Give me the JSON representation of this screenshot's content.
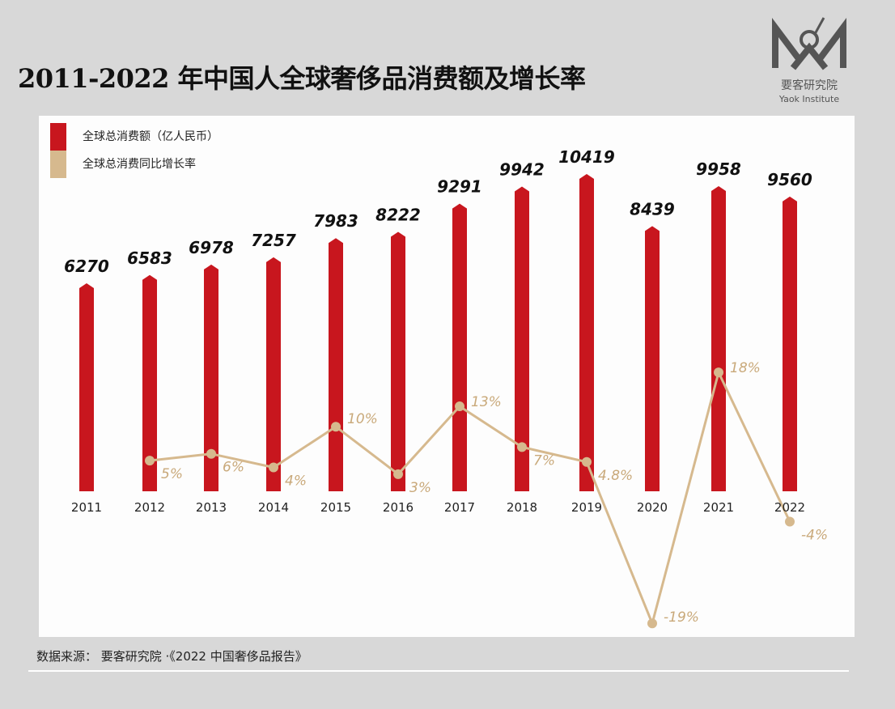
{
  "title": "2011-2022 年中国人全球奢侈品消费额及增长率",
  "logo": {
    "name": "要客研究院",
    "sub": "Yaok Institute"
  },
  "source": "数据来源： 要客研究院 ·《2022 中国奢侈品报告》",
  "colors": {
    "bar": "#c8161e",
    "line": "#d6b98e",
    "background": "#d8d8d8",
    "panel": "#fdfdfd"
  },
  "chart_data": {
    "type": "bar+line",
    "title": "2011-2022 年中国人全球奢侈品消费额及增长率",
    "legend_position": "top-left",
    "grid": false,
    "categories": [
      "2011",
      "2012",
      "2013",
      "2014",
      "2015",
      "2016",
      "2017",
      "2018",
      "2019",
      "2020",
      "2021",
      "2022"
    ],
    "series": [
      {
        "name": "全球总消费额（亿人民币）",
        "type": "bar",
        "values": [
          6270,
          6583,
          6978,
          7257,
          7983,
          8222,
          9291,
          9942,
          10419,
          8439,
          9958,
          9560
        ],
        "labels": [
          "6270",
          "6583",
          "6978",
          "7257",
          "7983",
          "8222",
          "9291",
          "9942",
          "10419",
          "8439",
          "9958",
          "9560"
        ]
      },
      {
        "name": "全球总消费同比增长率",
        "type": "line",
        "values": [
          null,
          5,
          6,
          4,
          10,
          3,
          13,
          7,
          4.8,
          -19,
          18,
          -4
        ],
        "labels": [
          "",
          "5%",
          "6%",
          "4%",
          "10%",
          "3%",
          "13%",
          "7%",
          "4.8%",
          "-19%",
          "18%",
          "-4%"
        ]
      }
    ]
  }
}
